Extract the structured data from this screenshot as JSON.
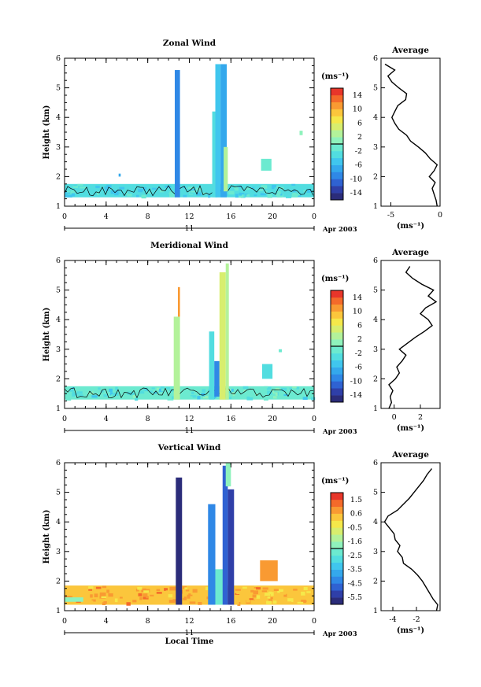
{
  "chart_data": [
    {
      "type": "heatmap",
      "title": "Zonal Wind",
      "ylabel": "Height (km)",
      "xlabel": "",
      "xlim": [
        0,
        24
      ],
      "ylim": [
        1,
        6
      ],
      "x_ticks": [
        "0",
        "4",
        "8",
        "12",
        "16",
        "20",
        "0"
      ],
      "y_ticks": [
        "1",
        "2",
        "3",
        "4",
        "5",
        "6"
      ],
      "date_axis": {
        "label": "11",
        "suffix": "Apr 2003"
      },
      "colorbar": {
        "unit": "(ms⁻¹)",
        "range": [
          -16,
          16
        ],
        "ticks": [
          "14",
          "10",
          "6",
          "2",
          "-2",
          "-6",
          "-10",
          "-14"
        ]
      },
      "regions": [
        {
          "x": [
            0,
            24
          ],
          "y": [
            1.3,
            1.75
          ],
          "value": -3
        },
        {
          "x": [
            5.2,
            5.4
          ],
          "y": [
            2.0,
            2.1
          ],
          "value": -8
        },
        {
          "x": [
            10.6,
            11.1
          ],
          "y": [
            1.3,
            5.6
          ],
          "value": -9
        },
        {
          "x": [
            14.2,
            14.7
          ],
          "y": [
            1.3,
            4.2
          ],
          "value": -4
        },
        {
          "x": [
            14.5,
            15.0
          ],
          "y": [
            1.3,
            5.8
          ],
          "value": -6
        },
        {
          "x": [
            15.0,
            15.6
          ],
          "y": [
            1.3,
            5.8
          ],
          "value": -7
        },
        {
          "x": [
            15.3,
            15.7
          ],
          "y": [
            1.5,
            3.0
          ],
          "value": 3
        },
        {
          "x": [
            18.9,
            19.9
          ],
          "y": [
            2.2,
            2.6
          ],
          "value": -1
        },
        {
          "x": [
            22.6,
            22.9
          ],
          "y": [
            3.4,
            3.55
          ],
          "value": 0
        }
      ],
      "average_profile": {
        "title": "Average",
        "unit": "(ms⁻¹)",
        "xlim": [
          -6,
          0
        ],
        "x_ticks": [
          "-5",
          "0"
        ],
        "height": [
          1.0,
          1.2,
          1.4,
          1.6,
          1.8,
          2.0,
          2.2,
          2.4,
          2.6,
          2.8,
          3.0,
          3.2,
          3.4,
          3.6,
          3.8,
          4.0,
          4.2,
          4.4,
          4.6,
          4.8,
          5.0,
          5.2,
          5.4,
          5.6,
          5.8
        ],
        "value": [
          -0.3,
          -0.4,
          -0.6,
          -0.8,
          -0.5,
          -1.1,
          -0.6,
          -0.3,
          -1.0,
          -1.5,
          -2.2,
          -3.0,
          -3.4,
          -4.2,
          -4.6,
          -4.9,
          -4.6,
          -4.3,
          -3.5,
          -3.4,
          -4.2,
          -4.9,
          -5.3,
          -4.6,
          -5.6
        ]
      }
    },
    {
      "type": "heatmap",
      "title": "Meridional Wind",
      "ylabel": "Height (km)",
      "xlabel": "",
      "xlim": [
        0,
        24
      ],
      "ylim": [
        1,
        6
      ],
      "x_ticks": [
        "0",
        "4",
        "8",
        "12",
        "16",
        "20",
        "0"
      ],
      "y_ticks": [
        "1",
        "2",
        "3",
        "4",
        "5",
        "6"
      ],
      "date_axis": {
        "label": "11",
        "suffix": "Apr 2003"
      },
      "colorbar": {
        "unit": "(ms⁻¹)",
        "range": [
          -16,
          16
        ],
        "ticks": [
          "14",
          "10",
          "6",
          "2",
          "-2",
          "-6",
          "-10",
          "-14"
        ]
      },
      "regions": [
        {
          "x": [
            0,
            24
          ],
          "y": [
            1.3,
            1.75
          ],
          "value": -2
        },
        {
          "x": [
            10.5,
            11.1
          ],
          "y": [
            1.3,
            4.1
          ],
          "value": 2
        },
        {
          "x": [
            10.9,
            11.1
          ],
          "y": [
            4.1,
            5.1
          ],
          "value": 11
        },
        {
          "x": [
            13.9,
            14.4
          ],
          "y": [
            1.3,
            3.6
          ],
          "value": -4
        },
        {
          "x": [
            14.4,
            14.9
          ],
          "y": [
            1.4,
            2.6
          ],
          "value": -10
        },
        {
          "x": [
            14.9,
            15.5
          ],
          "y": [
            1.3,
            5.6
          ],
          "value": 5
        },
        {
          "x": [
            15.5,
            15.8
          ],
          "y": [
            1.3,
            5.9
          ],
          "value": 3
        },
        {
          "x": [
            19.0,
            20.0
          ],
          "y": [
            2.0,
            2.5
          ],
          "value": -3
        },
        {
          "x": [
            20.6,
            20.9
          ],
          "y": [
            2.9,
            3.0
          ],
          "value": -2
        }
      ],
      "average_profile": {
        "title": "Average",
        "unit": "(ms⁻¹)",
        "xlim": [
          -1,
          3.5
        ],
        "x_ticks": [
          "0",
          "2"
        ],
        "height": [
          1.0,
          1.2,
          1.4,
          1.6,
          1.8,
          2.0,
          2.2,
          2.4,
          2.6,
          2.8,
          3.0,
          3.2,
          3.4,
          3.6,
          3.8,
          4.0,
          4.2,
          4.4,
          4.6,
          4.8,
          5.0,
          5.2,
          5.4,
          5.6,
          5.8
        ],
        "value": [
          -0.4,
          -0.2,
          -0.3,
          -0.1,
          -0.4,
          0.1,
          0.4,
          0.2,
          0.6,
          0.9,
          0.4,
          1.0,
          1.6,
          2.3,
          2.9,
          2.6,
          2.0,
          2.4,
          3.2,
          2.6,
          3.0,
          2.1,
          1.4,
          0.9,
          1.2
        ]
      }
    },
    {
      "type": "heatmap",
      "title": "Vertical Wind",
      "ylabel": "Height (km)",
      "xlabel": "Local Time",
      "xlim": [
        0,
        24
      ],
      "ylim": [
        1,
        6
      ],
      "x_ticks": [
        "0",
        "4",
        "8",
        "12",
        "16",
        "20",
        "0"
      ],
      "y_ticks": [
        "1",
        "2",
        "3",
        "4",
        "5",
        "6"
      ],
      "date_axis": {
        "label": "11",
        "suffix": "Apr 2003"
      },
      "colorbar": {
        "unit": "(ms⁻¹)",
        "range": [
          -6.0,
          2.0
        ],
        "ticks": [
          "1.5",
          "0.6",
          "-0.5",
          "-1.6",
          "-2.5",
          "-3.5",
          "-4.5",
          "-5.5"
        ]
      },
      "regions": [
        {
          "x": [
            0,
            24
          ],
          "y": [
            1.2,
            1.85
          ],
          "value": 0.4
        },
        {
          "x": [
            0,
            1.8
          ],
          "y": [
            1.3,
            1.45
          ],
          "value": -2.0
        },
        {
          "x": [
            10.7,
            11.3
          ],
          "y": [
            1.2,
            5.5
          ],
          "value": -5.7
        },
        {
          "x": [
            13.8,
            14.5
          ],
          "y": [
            1.2,
            4.6
          ],
          "value": -4.3
        },
        {
          "x": [
            14.5,
            15.3
          ],
          "y": [
            1.2,
            2.4
          ],
          "value": -2.5
        },
        {
          "x": [
            15.2,
            15.7
          ],
          "y": [
            1.2,
            5.9
          ],
          "value": -4.8
        },
        {
          "x": [
            15.7,
            16.3
          ],
          "y": [
            1.2,
            5.1
          ],
          "value": -5.3
        },
        {
          "x": [
            15.5,
            16.0
          ],
          "y": [
            5.2,
            6.0
          ],
          "value": -1.6
        },
        {
          "x": [
            18.8,
            20.5
          ],
          "y": [
            2.0,
            2.7
          ],
          "value": 0.9
        }
      ],
      "average_profile": {
        "title": "Average",
        "unit": "(ms⁻¹)",
        "xlim": [
          -5,
          0
        ],
        "x_ticks": [
          "-4",
          "-2"
        ],
        "height": [
          1.0,
          1.2,
          1.4,
          1.6,
          1.8,
          2.0,
          2.2,
          2.4,
          2.6,
          2.8,
          3.0,
          3.2,
          3.4,
          3.6,
          3.8,
          4.0,
          4.2,
          4.4,
          4.6,
          4.8,
          5.0,
          5.2,
          5.4,
          5.6,
          5.8
        ],
        "value": [
          -0.3,
          -0.2,
          -0.6,
          -0.9,
          -1.2,
          -1.5,
          -1.9,
          -2.4,
          -3.1,
          -3.2,
          -3.6,
          -3.4,
          -3.8,
          -3.9,
          -4.3,
          -4.7,
          -4.4,
          -3.6,
          -3.1,
          -2.6,
          -2.2,
          -1.8,
          -1.4,
          -1.1,
          -0.7
        ]
      }
    }
  ]
}
